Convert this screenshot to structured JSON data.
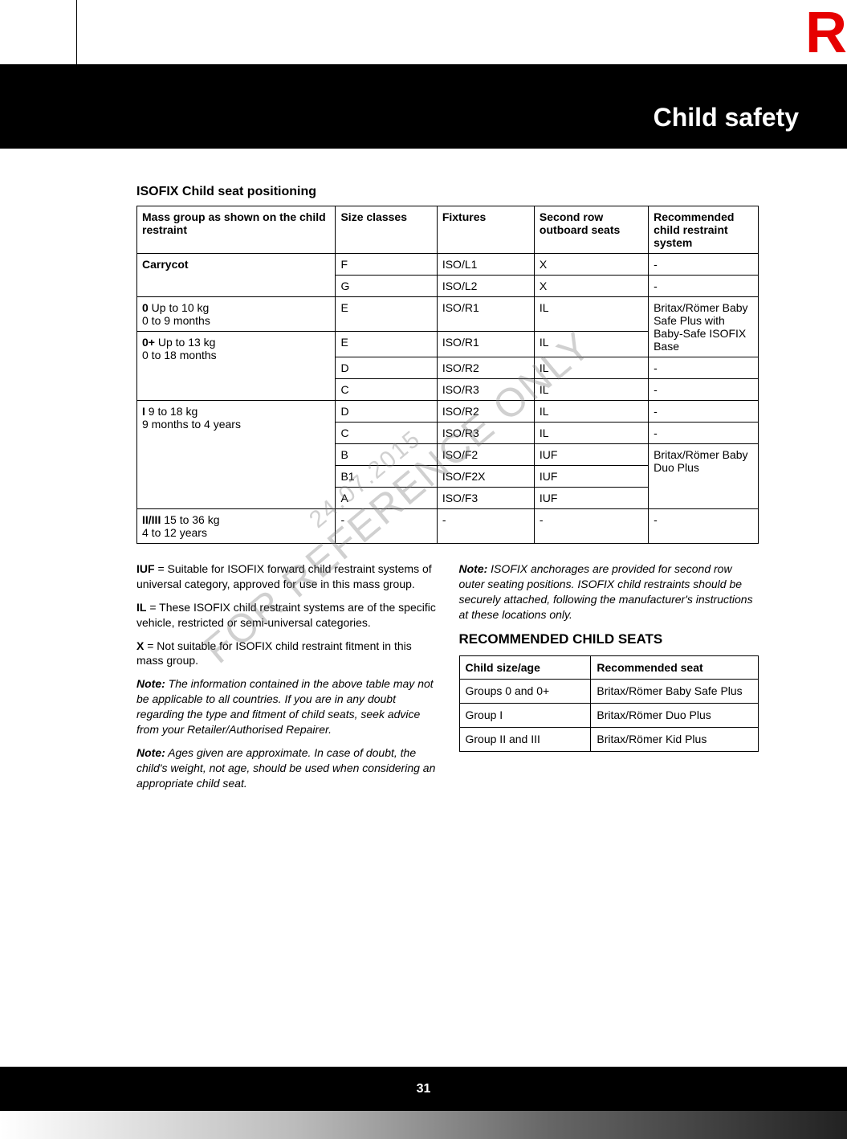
{
  "tab_letter": "R",
  "banner_title": "Child safety",
  "section_title": "ISOFIX Child seat positioning",
  "main_table": {
    "headers": {
      "mass": "Mass group as shown on the child restraint",
      "size": "Size classes",
      "fixtures": "Fixtures",
      "second": "Second row outboard seats",
      "recommended": "Recommended child restraint system"
    },
    "carrycot_label": "Carrycot",
    "carrycot_rows": [
      {
        "size": "F",
        "fix": "ISO/L1",
        "second": "X",
        "rec": "-"
      },
      {
        "size": "G",
        "fix": "ISO/L2",
        "second": "X",
        "rec": "-"
      }
    ],
    "group0_label_bold": "0",
    "group0_label_rest": " Up to 10 kg",
    "group0_sub": "0 to 9 months",
    "group0_row": {
      "size": "E",
      "fix": "ISO/R1",
      "second": "IL"
    },
    "group0plus_label_bold": "0+",
    "group0plus_label_rest": " Up to 13 kg",
    "group0plus_sub": "0 to 18 months",
    "group0plus_row1": {
      "size": "E",
      "fix": "ISO/R1",
      "second": "IL"
    },
    "rec_britax_baby": "Britax/Römer Baby Safe Plus with Baby-Safe ISOFIX Base",
    "group0plus_rows_rest": [
      {
        "size": "D",
        "fix": "ISO/R2",
        "second": "IL",
        "rec": "-"
      },
      {
        "size": "C",
        "fix": "ISO/R3",
        "second": "IL",
        "rec": "-"
      }
    ],
    "groupI_label_bold": "I",
    "groupI_label_rest": " 9 to 18 kg",
    "groupI_sub": "9 months to 4 years",
    "groupI_rows_top": [
      {
        "size": "D",
        "fix": "ISO/R2",
        "second": "IL",
        "rec": "-"
      },
      {
        "size": "C",
        "fix": "ISO/R3",
        "second": "IL",
        "rec": "-"
      }
    ],
    "groupI_rows_iuf": [
      {
        "size": "B",
        "fix": "ISO/F2",
        "second": "IUF"
      },
      {
        "size": "B1",
        "fix": "ISO/F2X",
        "second": "IUF"
      },
      {
        "size": "A",
        "fix": "ISO/F3",
        "second": "IUF"
      }
    ],
    "rec_britax_duo": "Britax/Römer Baby Duo Plus",
    "groupII_label_bold": "II/III",
    "groupII_label_rest": "  15 to 36 kg",
    "groupII_sub": "4 to 12 years",
    "groupII_row": {
      "size": "-",
      "fix": "-",
      "second": "-",
      "rec": "-"
    }
  },
  "watermark1": "FOR REFERENCE ONLY",
  "watermark2": "24.07.2015",
  "definitions": {
    "iuf_bold": "IUF",
    "iuf_text": " = Suitable for ISOFIX forward child restraint systems of universal category, approved for use in this mass group.",
    "il_bold": "IL",
    "il_text": " = These ISOFIX child restraint systems are of the specific vehicle, restricted or semi-universal categories.",
    "x_bold": "X",
    "x_text": " = Not suitable for ISOFIX child restraint fitment in this mass group."
  },
  "notes": {
    "note1_label": "Note:",
    "note1_text": " The information contained in the above table may not be applicable to all countries. If you are in any doubt regarding the type and fitment of child seats, seek advice from your Retailer/Authorised Repairer.",
    "note2_label": "Note:",
    "note2_text": " Ages given are approximate. In case of doubt, the child's weight, not age, should be used when considering an appropriate child seat.",
    "note3_label": "Note:",
    "note3_text": " ISOFIX anchorages are provided for second row outer seating positions. ISOFIX child restraints should be securely attached, following the manufacturer's instructions at these locations only."
  },
  "rec_heading": "RECOMMENDED CHILD SEATS",
  "rec_table": {
    "headers": {
      "age": "Child size/age",
      "seat": "Recommended seat"
    },
    "rows": [
      {
        "age": "Groups 0 and 0+",
        "seat": "Britax/Römer Baby Safe Plus"
      },
      {
        "age": "Group I",
        "seat": "Britax/Römer Duo Plus"
      },
      {
        "age": "Group II and III",
        "seat": "Britax/Römer Kid Plus"
      }
    ]
  },
  "page_number": "31"
}
